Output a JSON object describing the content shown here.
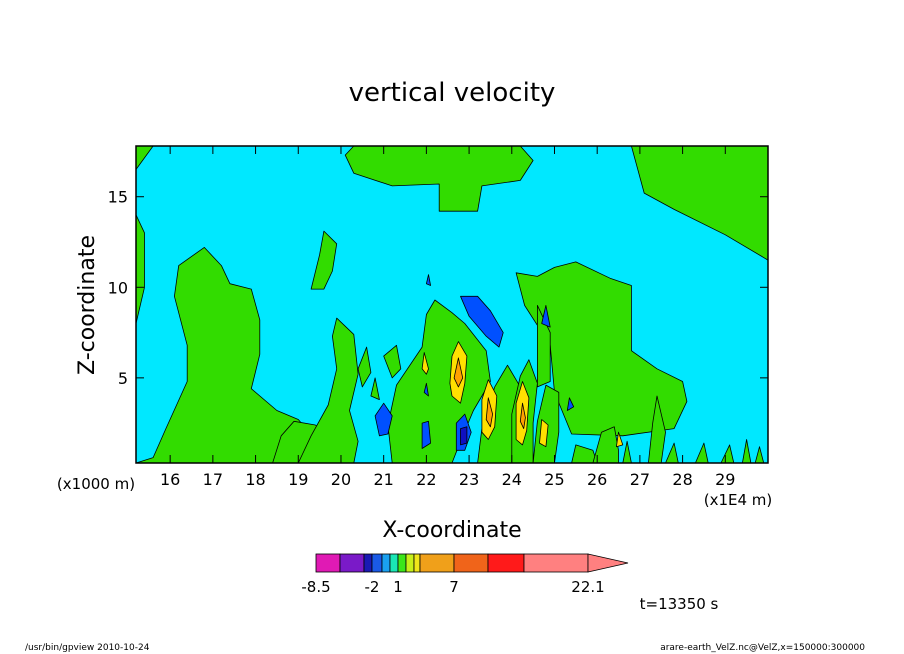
{
  "chart_data": {
    "type": "heatmap",
    "title": "vertical velocity",
    "xlabel": "X-coordinate",
    "ylabel": "Z-coordinate",
    "x_unit_note": "(x1E4 m)",
    "y_unit_note": "(x1000 m)",
    "xlim": [
      15.2,
      30
    ],
    "ylim": [
      0.3,
      17.8
    ],
    "x_ticks": [
      16,
      17,
      18,
      19,
      20,
      21,
      22,
      23,
      24,
      25,
      26,
      27,
      28,
      29
    ],
    "y_ticks": [
      5,
      10,
      15
    ],
    "time_label": "t=13350 s",
    "colorbar": {
      "labels": [
        "-8.5",
        "-2",
        "1",
        "7",
        "22.1"
      ],
      "colors": [
        "#e01ab4",
        "#7a1ac8",
        "#1a1ab4",
        "#1a5ae6",
        "#1aa0f0",
        "#1ae6b4",
        "#3ce61a",
        "#c8f01a",
        "#f0e61a",
        "#f0a01a",
        "#f0641a",
        "#ff1a1a",
        "#ff8080"
      ]
    },
    "field_levels": {
      "background": "#00e8ff",
      "positive_weak": "#32dc00",
      "positive_mid": "#ffe000",
      "positive_strong": "#ffa000",
      "negative_weak": "#0050ff",
      "negative_strong": "#1010c0"
    },
    "regions": [
      {
        "level": "positive_weak",
        "pts": [
          [
            15.2,
            0.3
          ],
          [
            15.6,
            0.6
          ],
          [
            15.9,
            2.2
          ],
          [
            16.4,
            4.8
          ],
          [
            16.4,
            6.8
          ],
          [
            16.1,
            9.5
          ],
          [
            16.2,
            11.2
          ],
          [
            16.8,
            12.2
          ],
          [
            17.2,
            11.2
          ],
          [
            17.4,
            10.2
          ],
          [
            17.9,
            9.9
          ],
          [
            18.1,
            8.2
          ],
          [
            18.1,
            6.3
          ],
          [
            17.9,
            4.4
          ],
          [
            18.5,
            3.2
          ],
          [
            19.0,
            2.7
          ],
          [
            19.4,
            1.6
          ],
          [
            19.4,
            0.3
          ]
        ]
      },
      {
        "level": "positive_weak",
        "pts": [
          [
            15.2,
            8
          ],
          [
            15.4,
            10
          ],
          [
            15.4,
            13
          ],
          [
            15.2,
            14
          ]
        ]
      },
      {
        "level": "positive_weak",
        "pts": [
          [
            15.2,
            16.5
          ],
          [
            15.6,
            17.8
          ],
          [
            15.2,
            17.8
          ]
        ]
      },
      {
        "level": "positive_weak",
        "pts": [
          [
            18.4,
            0.3
          ],
          [
            18.6,
            1.8
          ],
          [
            18.9,
            2.6
          ],
          [
            19.4,
            2.4
          ],
          [
            19.8,
            1.6
          ],
          [
            19.9,
            0.3
          ]
        ]
      },
      {
        "level": "positive_weak",
        "pts": [
          [
            19.0,
            0.3
          ],
          [
            19.3,
            1.8
          ],
          [
            19.7,
            3.5
          ],
          [
            19.9,
            5.5
          ],
          [
            19.8,
            7.3
          ],
          [
            19.9,
            8.3
          ],
          [
            20.3,
            7.4
          ],
          [
            20.4,
            5.2
          ],
          [
            20.2,
            3.2
          ],
          [
            20.4,
            1.5
          ],
          [
            20.3,
            0.3
          ]
        ]
      },
      {
        "level": "positive_weak",
        "pts": [
          [
            19.3,
            9.9
          ],
          [
            19.5,
            11.8
          ],
          [
            19.6,
            13.1
          ],
          [
            19.9,
            12.4
          ],
          [
            19.8,
            10.9
          ],
          [
            19.6,
            9.9
          ]
        ]
      },
      {
        "level": "positive_weak",
        "pts": [
          [
            20.1,
            17.3
          ],
          [
            20.3,
            16.3
          ],
          [
            21.2,
            15.6
          ],
          [
            22.3,
            15.7
          ],
          [
            22.3,
            14.2
          ],
          [
            23.2,
            14.2
          ],
          [
            23.3,
            15.6
          ],
          [
            24.2,
            15.9
          ],
          [
            24.5,
            17.0
          ],
          [
            24.2,
            17.8
          ],
          [
            20.3,
            17.8
          ]
        ]
      },
      {
        "level": "positive_weak",
        "pts": [
          [
            26.8,
            17.8
          ],
          [
            27.1,
            15.2
          ],
          [
            27.8,
            14.3
          ],
          [
            29.0,
            12.9
          ],
          [
            30,
            11.5
          ],
          [
            30,
            17.8
          ]
        ]
      },
      {
        "level": "positive_weak",
        "pts": [
          [
            24.1,
            10.8
          ],
          [
            24.6,
            10.6
          ],
          [
            25.0,
            11.1
          ],
          [
            25.5,
            11.4
          ],
          [
            26.3,
            10.5
          ],
          [
            26.8,
            10.1
          ],
          [
            26.8,
            6.5
          ],
          [
            27.4,
            5.5
          ],
          [
            28.0,
            4.8
          ],
          [
            28.1,
            3.7
          ],
          [
            27.8,
            2.2
          ],
          [
            26.6,
            1.8
          ],
          [
            25.4,
            1.9
          ],
          [
            25.0,
            4.2
          ],
          [
            24.9,
            6.8
          ],
          [
            24.3,
            9.0
          ]
        ]
      },
      {
        "level": "positive_weak",
        "pts": [
          [
            21.2,
            0.3
          ],
          [
            21.1,
            2.4
          ],
          [
            21.3,
            4.6
          ],
          [
            21.9,
            6.7
          ],
          [
            22.0,
            8.5
          ],
          [
            22.2,
            9.3
          ],
          [
            22.6,
            8.6
          ],
          [
            22.9,
            8.0
          ],
          [
            23.4,
            6.5
          ],
          [
            23.5,
            4.8
          ],
          [
            23.1,
            3.2
          ],
          [
            22.8,
            1.5
          ],
          [
            22.6,
            0.3
          ]
        ]
      },
      {
        "level": "positive_weak",
        "pts": [
          [
            21.0,
            6.2
          ],
          [
            21.3,
            6.8
          ],
          [
            21.4,
            5.5
          ],
          [
            21.2,
            5.0
          ]
        ]
      },
      {
        "level": "positive_weak",
        "pts": [
          [
            20.4,
            5.5
          ],
          [
            20.6,
            6.7
          ],
          [
            20.7,
            5.3
          ],
          [
            20.5,
            4.5
          ]
        ]
      },
      {
        "level": "positive_weak",
        "pts": [
          [
            20.7,
            4.0
          ],
          [
            20.8,
            5.0
          ],
          [
            20.9,
            3.8
          ]
        ]
      },
      {
        "level": "positive_weak",
        "pts": [
          [
            23.2,
            0.3
          ],
          [
            23.3,
            2.2
          ],
          [
            23.6,
            4.5
          ],
          [
            23.9,
            5.7
          ],
          [
            24.2,
            4.5
          ],
          [
            24.1,
            2.5
          ],
          [
            24.0,
            0.3
          ]
        ]
      },
      {
        "level": "positive_weak",
        "pts": [
          [
            24.0,
            0.3
          ],
          [
            24.0,
            3.0
          ],
          [
            24.2,
            5.1
          ],
          [
            24.4,
            6.0
          ],
          [
            24.6,
            4.7
          ],
          [
            24.5,
            2.5
          ],
          [
            24.5,
            0.3
          ]
        ]
      },
      {
        "level": "positive_weak",
        "pts": [
          [
            24.5,
            0.3
          ],
          [
            24.6,
            2.6
          ],
          [
            24.8,
            4.6
          ],
          [
            25.1,
            4.2
          ],
          [
            25.1,
            2.0
          ],
          [
            25.0,
            0.3
          ]
        ]
      },
      {
        "level": "positive_weak",
        "pts": [
          [
            24.6,
            9.0
          ],
          [
            24.6,
            6.5
          ],
          [
            24.6,
            4.5
          ],
          [
            24.9,
            4.8
          ],
          [
            24.9,
            7.5
          ]
        ]
      },
      {
        "level": "positive_weak",
        "pts": [
          [
            25.4,
            0.3
          ],
          [
            25.5,
            1.3
          ],
          [
            25.9,
            1.0
          ],
          [
            26.0,
            0.3
          ]
        ]
      },
      {
        "level": "positive_weak",
        "pts": [
          [
            25.9,
            0.3
          ],
          [
            26.1,
            2.0
          ],
          [
            26.4,
            2.3
          ],
          [
            26.5,
            1.0
          ],
          [
            26.5,
            0.3
          ]
        ]
      },
      {
        "level": "positive_weak",
        "pts": [
          [
            26.6,
            0.3
          ],
          [
            26.7,
            1.5
          ],
          [
            26.8,
            0.3
          ]
        ]
      },
      {
        "level": "positive_weak",
        "pts": [
          [
            27.6,
            0.3
          ],
          [
            27.8,
            1.4
          ],
          [
            27.9,
            0.3
          ]
        ]
      },
      {
        "level": "positive_weak",
        "pts": [
          [
            28.3,
            0.3
          ],
          [
            28.5,
            1.4
          ],
          [
            28.6,
            0.3
          ]
        ]
      },
      {
        "level": "positive_weak",
        "pts": [
          [
            28.9,
            0.3
          ],
          [
            29.1,
            1.3
          ],
          [
            29.2,
            0.3
          ]
        ]
      },
      {
        "level": "positive_weak",
        "pts": [
          [
            29.4,
            0.3
          ],
          [
            29.5,
            1.6
          ],
          [
            29.6,
            0.3
          ]
        ]
      },
      {
        "level": "positive_weak",
        "pts": [
          [
            29.7,
            0.3
          ],
          [
            29.8,
            1.2
          ],
          [
            29.9,
            0.3
          ]
        ]
      },
      {
        "level": "positive_weak",
        "pts": [
          [
            27.2,
            0.3
          ],
          [
            27.3,
            2.5
          ],
          [
            27.4,
            4.0
          ],
          [
            27.6,
            2.0
          ],
          [
            27.5,
            0.3
          ]
        ]
      },
      {
        "level": "positive_mid",
        "pts": [
          [
            22.55,
            4.7
          ],
          [
            22.6,
            6.2
          ],
          [
            22.75,
            7.0
          ],
          [
            22.95,
            6.2
          ],
          [
            22.9,
            4.7
          ],
          [
            22.8,
            3.6
          ],
          [
            22.6,
            4.0
          ]
        ]
      },
      {
        "level": "positive_strong",
        "pts": [
          [
            22.65,
            5.0
          ],
          [
            22.75,
            6.1
          ],
          [
            22.85,
            5.0
          ],
          [
            22.75,
            4.5
          ]
        ]
      },
      {
        "level": "positive_mid",
        "pts": [
          [
            23.3,
            2.0
          ],
          [
            23.3,
            3.8
          ],
          [
            23.45,
            4.9
          ],
          [
            23.65,
            4.0
          ],
          [
            23.6,
            2.3
          ],
          [
            23.45,
            1.6
          ]
        ]
      },
      {
        "level": "positive_strong",
        "pts": [
          [
            23.4,
            2.7
          ],
          [
            23.45,
            3.9
          ],
          [
            23.55,
            3.0
          ],
          [
            23.5,
            2.3
          ]
        ]
      },
      {
        "level": "positive_mid",
        "pts": [
          [
            24.1,
            1.6
          ],
          [
            24.1,
            3.6
          ],
          [
            24.25,
            4.8
          ],
          [
            24.4,
            3.9
          ],
          [
            24.35,
            2.1
          ],
          [
            24.25,
            1.3
          ]
        ]
      },
      {
        "level": "positive_strong",
        "pts": [
          [
            24.2,
            2.6
          ],
          [
            24.25,
            3.6
          ],
          [
            24.32,
            2.8
          ],
          [
            24.28,
            2.2
          ]
        ]
      },
      {
        "level": "positive_mid",
        "pts": [
          [
            21.9,
            5.5
          ],
          [
            21.95,
            6.4
          ],
          [
            22.05,
            5.5
          ],
          [
            22.0,
            5.2
          ]
        ]
      },
      {
        "level": "positive_mid",
        "pts": [
          [
            24.65,
            1.4
          ],
          [
            24.7,
            2.7
          ],
          [
            24.85,
            2.4
          ],
          [
            24.8,
            1.2
          ]
        ]
      },
      {
        "level": "positive_mid",
        "pts": [
          [
            26.45,
            1.2
          ],
          [
            26.5,
            2.0
          ],
          [
            26.6,
            1.3
          ]
        ]
      },
      {
        "level": "negative_weak",
        "pts": [
          [
            22.8,
            9.5
          ],
          [
            23.0,
            8.4
          ],
          [
            23.4,
            7.3
          ],
          [
            23.7,
            6.7
          ],
          [
            23.8,
            7.5
          ],
          [
            23.5,
            8.7
          ],
          [
            23.2,
            9.5
          ]
        ]
      },
      {
        "level": "negative_weak",
        "pts": [
          [
            20.9,
            1.8
          ],
          [
            20.8,
            2.9
          ],
          [
            21.0,
            3.6
          ],
          [
            21.2,
            2.9
          ],
          [
            21.1,
            1.9
          ]
        ]
      },
      {
        "level": "negative_weak",
        "pts": [
          [
            21.9,
            1.1
          ],
          [
            21.9,
            2.5
          ],
          [
            22.05,
            2.6
          ],
          [
            22.1,
            1.4
          ]
        ]
      },
      {
        "level": "negative_weak",
        "pts": [
          [
            22.7,
            1.0
          ],
          [
            22.7,
            2.5
          ],
          [
            22.9,
            3.0
          ],
          [
            23.05,
            2.0
          ],
          [
            22.9,
            1.0
          ]
        ]
      },
      {
        "level": "negative_strong",
        "pts": [
          [
            22.8,
            1.3
          ],
          [
            22.8,
            2.2
          ],
          [
            22.95,
            2.3
          ],
          [
            22.95,
            1.4
          ]
        ]
      },
      {
        "level": "negative_weak",
        "pts": [
          [
            21.95,
            4.2
          ],
          [
            22.0,
            4.7
          ],
          [
            22.05,
            4.0
          ]
        ]
      },
      {
        "level": "negative_weak",
        "pts": [
          [
            25.3,
            3.2
          ],
          [
            25.35,
            3.9
          ],
          [
            25.45,
            3.4
          ]
        ]
      },
      {
        "level": "negative_weak",
        "pts": [
          [
            24.7,
            8.0
          ],
          [
            24.8,
            9.0
          ],
          [
            24.9,
            7.8
          ]
        ]
      },
      {
        "level": "negative_weak",
        "pts": [
          [
            22.0,
            10.2
          ],
          [
            22.05,
            10.7
          ],
          [
            22.1,
            10.1
          ]
        ]
      }
    ]
  },
  "footer": {
    "left": "/usr/bin/gpview   2010-10-24",
    "right": "arare-earth_VelZ.nc@VelZ,x=150000:300000"
  }
}
